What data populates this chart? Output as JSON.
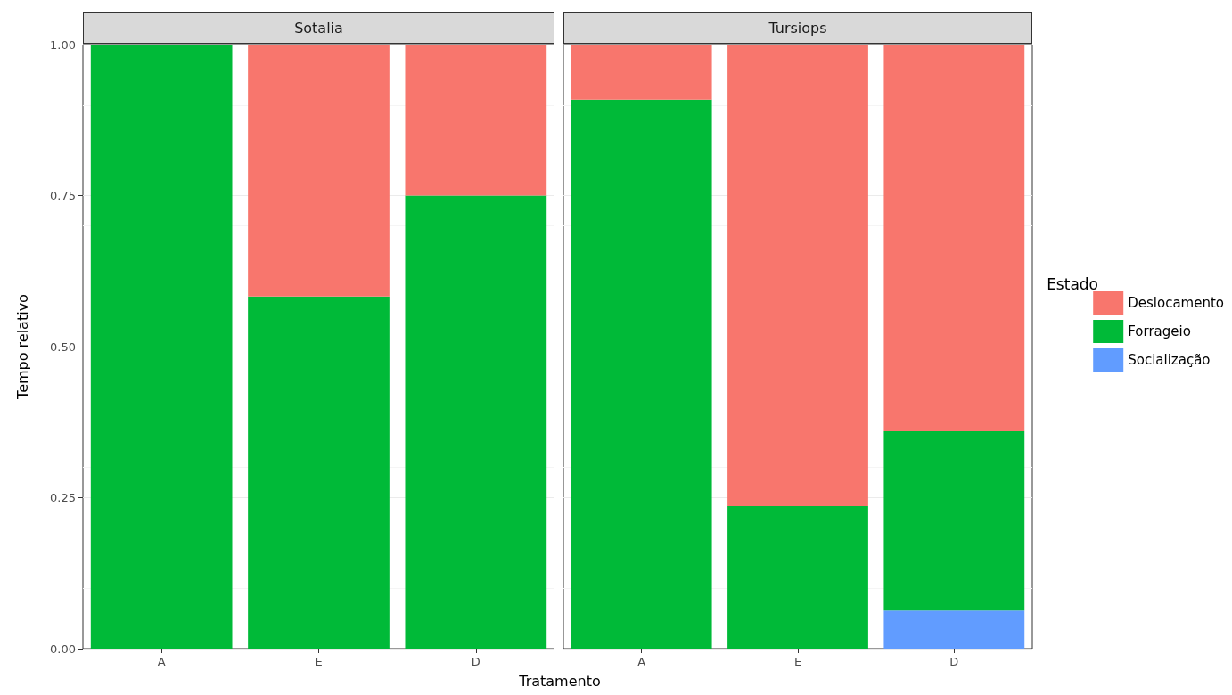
{
  "chart_data": [
    {
      "type": "bar",
      "title": "Sotalia",
      "xlabel": "Tratamento",
      "ylabel": "Tempo relativo",
      "stacked": true,
      "categories": [
        "A",
        "E",
        "D"
      ],
      "series": [
        {
          "color": "#00ba38",
          "values": [
            1,
            0.583,
            0.75
          ]
        },
        {
          "color": "#f8766d",
          "values": [
            null,
            0.417,
            0.25
          ]
        }
      ],
      "ylim": [
        0,
        1
      ],
      "yticks": [
        {
          "value": 0,
          "label": "0.00"
        },
        {
          "value": 0.25,
          "label": "0.25"
        },
        {
          "value": 0.5,
          "label": "0.50"
        },
        {
          "value": 0.75,
          "label": "0.75"
        },
        {
          "value": 1,
          "label": "1.00"
        }
      ],
      "grid": "y"
    },
    {
      "type": "bar",
      "title": "Tursiops",
      "stacked": true,
      "categories": [
        "A",
        "E",
        "D"
      ],
      "legend": "right",
      "legend_title": "Estado",
      "tick_labels": "x",
      "series": [
        {
          "name": "Socialização",
          "color": "#619cff",
          "values": [
            null,
            null,
            0.063
          ]
        },
        {
          "name": "Forrageio",
          "color": "#00ba38",
          "values": [
            0.909,
            0.236,
            0.297
          ]
        },
        {
          "name": "Deslocamento",
          "color": "#f8766d",
          "values": [
            0.091,
            0.764,
            0.64
          ]
        }
      ],
      "ylim": [
        0,
        1
      ],
      "yticks": [
        {
          "value": 0,
          "label": null
        },
        {
          "value": 0.25,
          "label": null
        },
        {
          "value": 0.5,
          "label": null
        },
        {
          "value": 0.75,
          "label": null
        },
        {
          "value": 1,
          "label": null
        }
      ],
      "grid": "y"
    }
  ]
}
